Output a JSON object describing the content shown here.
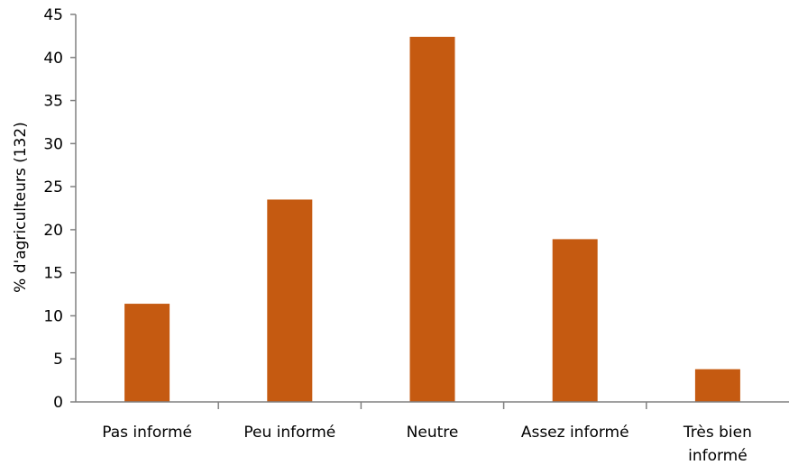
{
  "chart_data": {
    "type": "bar",
    "title": "",
    "xlabel": "",
    "ylabel": "% d'agriculteurs (132)",
    "categories": [
      [
        "Pas informé"
      ],
      [
        "Peu informé"
      ],
      [
        "Neutre"
      ],
      [
        "Assez informé"
      ],
      [
        "Très bien",
        "informé"
      ]
    ],
    "values": [
      11.4,
      23.5,
      42.4,
      18.9,
      3.8
    ],
    "ylim": [
      0,
      45
    ],
    "yticks": [
      0,
      5,
      10,
      15,
      20,
      25,
      30,
      35,
      40,
      45
    ],
    "grid": false,
    "legend": "none",
    "colors": {
      "bar": "#C55A11",
      "axis": "#808080",
      "text": "#000000"
    }
  }
}
